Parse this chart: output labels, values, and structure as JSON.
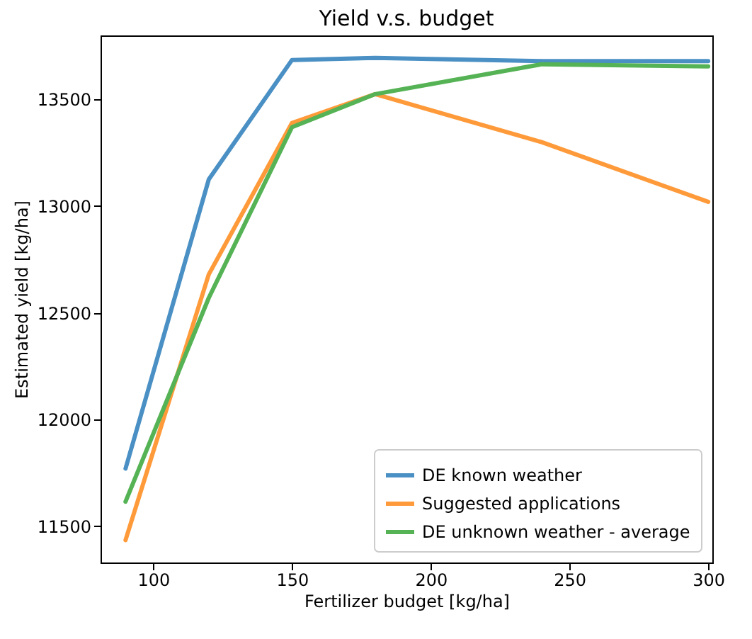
{
  "chart_data": {
    "type": "line",
    "title": "Yield v.s. budget",
    "xlabel": "Fertilizer budget [kg/ha]",
    "ylabel": "Estimated yield [kg/ha]",
    "x": [
      90,
      120,
      150,
      180,
      240,
      300
    ],
    "series": [
      {
        "name": "DE known weather",
        "color": "#4a90c4",
        "values": [
          11770,
          13125,
          13685,
          13695,
          13680,
          13680
        ]
      },
      {
        "name": "Suggested applications",
        "color": "#ff9a3a",
        "values": [
          11435,
          12680,
          13390,
          13525,
          13300,
          13020
        ]
      },
      {
        "name": "DE unknown weather - average",
        "color": "#55b355",
        "values": [
          11615,
          12570,
          13370,
          13525,
          13665,
          13655
        ]
      }
    ],
    "xlim": [
      81,
      301.5
    ],
    "xticks": [
      100,
      150,
      200,
      250,
      300
    ],
    "ylim": [
      11330,
      13800
    ],
    "yticks": [
      11500,
      12000,
      12500,
      13000,
      13500
    ],
    "grid": false,
    "legend": "bottom right",
    "line_style": "solid",
    "marker": "none"
  }
}
